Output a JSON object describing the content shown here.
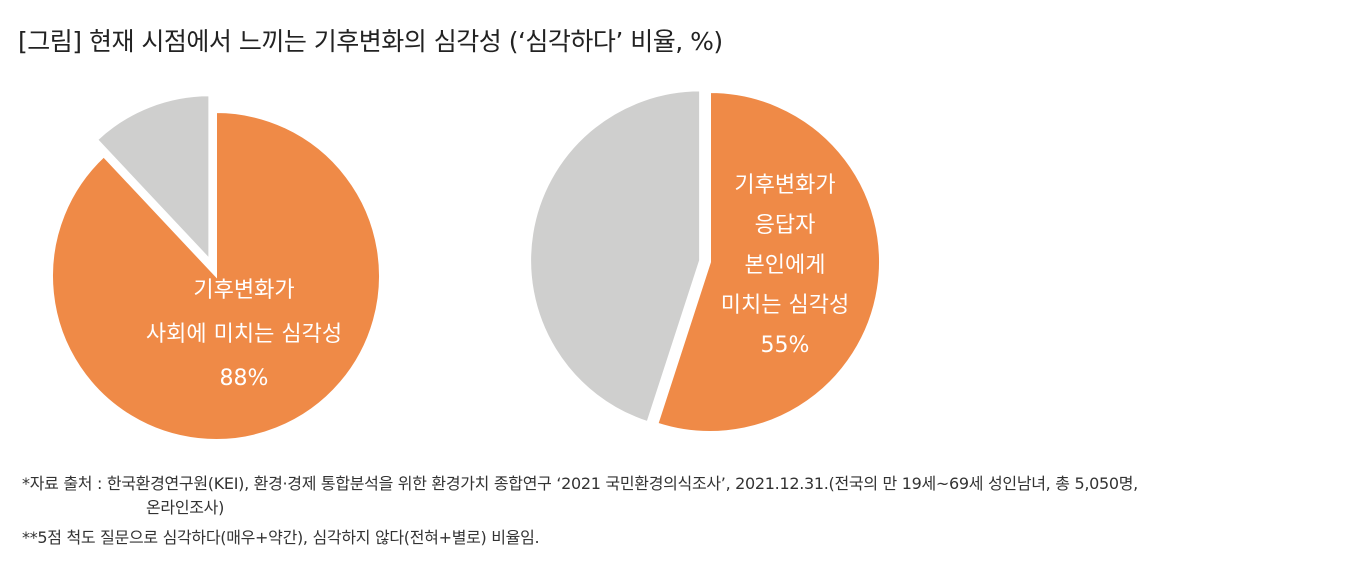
{
  "title": "[그림] 현재 시점에서 느끼는 기후변화의 심각성 (‘심각하다’ 비율, %)",
  "colors": {
    "accent": "#ef8a47",
    "rest": "#cfcfce"
  },
  "chart_data": [
    {
      "type": "pie",
      "values": [
        88,
        12
      ],
      "label_lines": [
        "기후변화가",
        "사회에 미치는 심각성",
        "88%"
      ]
    },
    {
      "type": "pie",
      "values": [
        55,
        45
      ],
      "label_lines": [
        "기후변화가",
        "응답자",
        "본인에게",
        "미치는 심각성",
        "55%"
      ]
    }
  ],
  "notes": {
    "source_line1": "*자료 출처 : 한국환경연구원(KEI), 환경·경제 통합분석을 위한 환경가치 종합연구 ‘2021 국민환경의식조사’, 2021.12.31.(전국의 만 19세~69세 성인남녀, 총 5,050명,",
    "source_line2": "온라인조사)",
    "scale_note": "**5점 척도 질문으로 심각하다(매우+약간), 심각하지 않다(전혀+별로) 비율임."
  }
}
